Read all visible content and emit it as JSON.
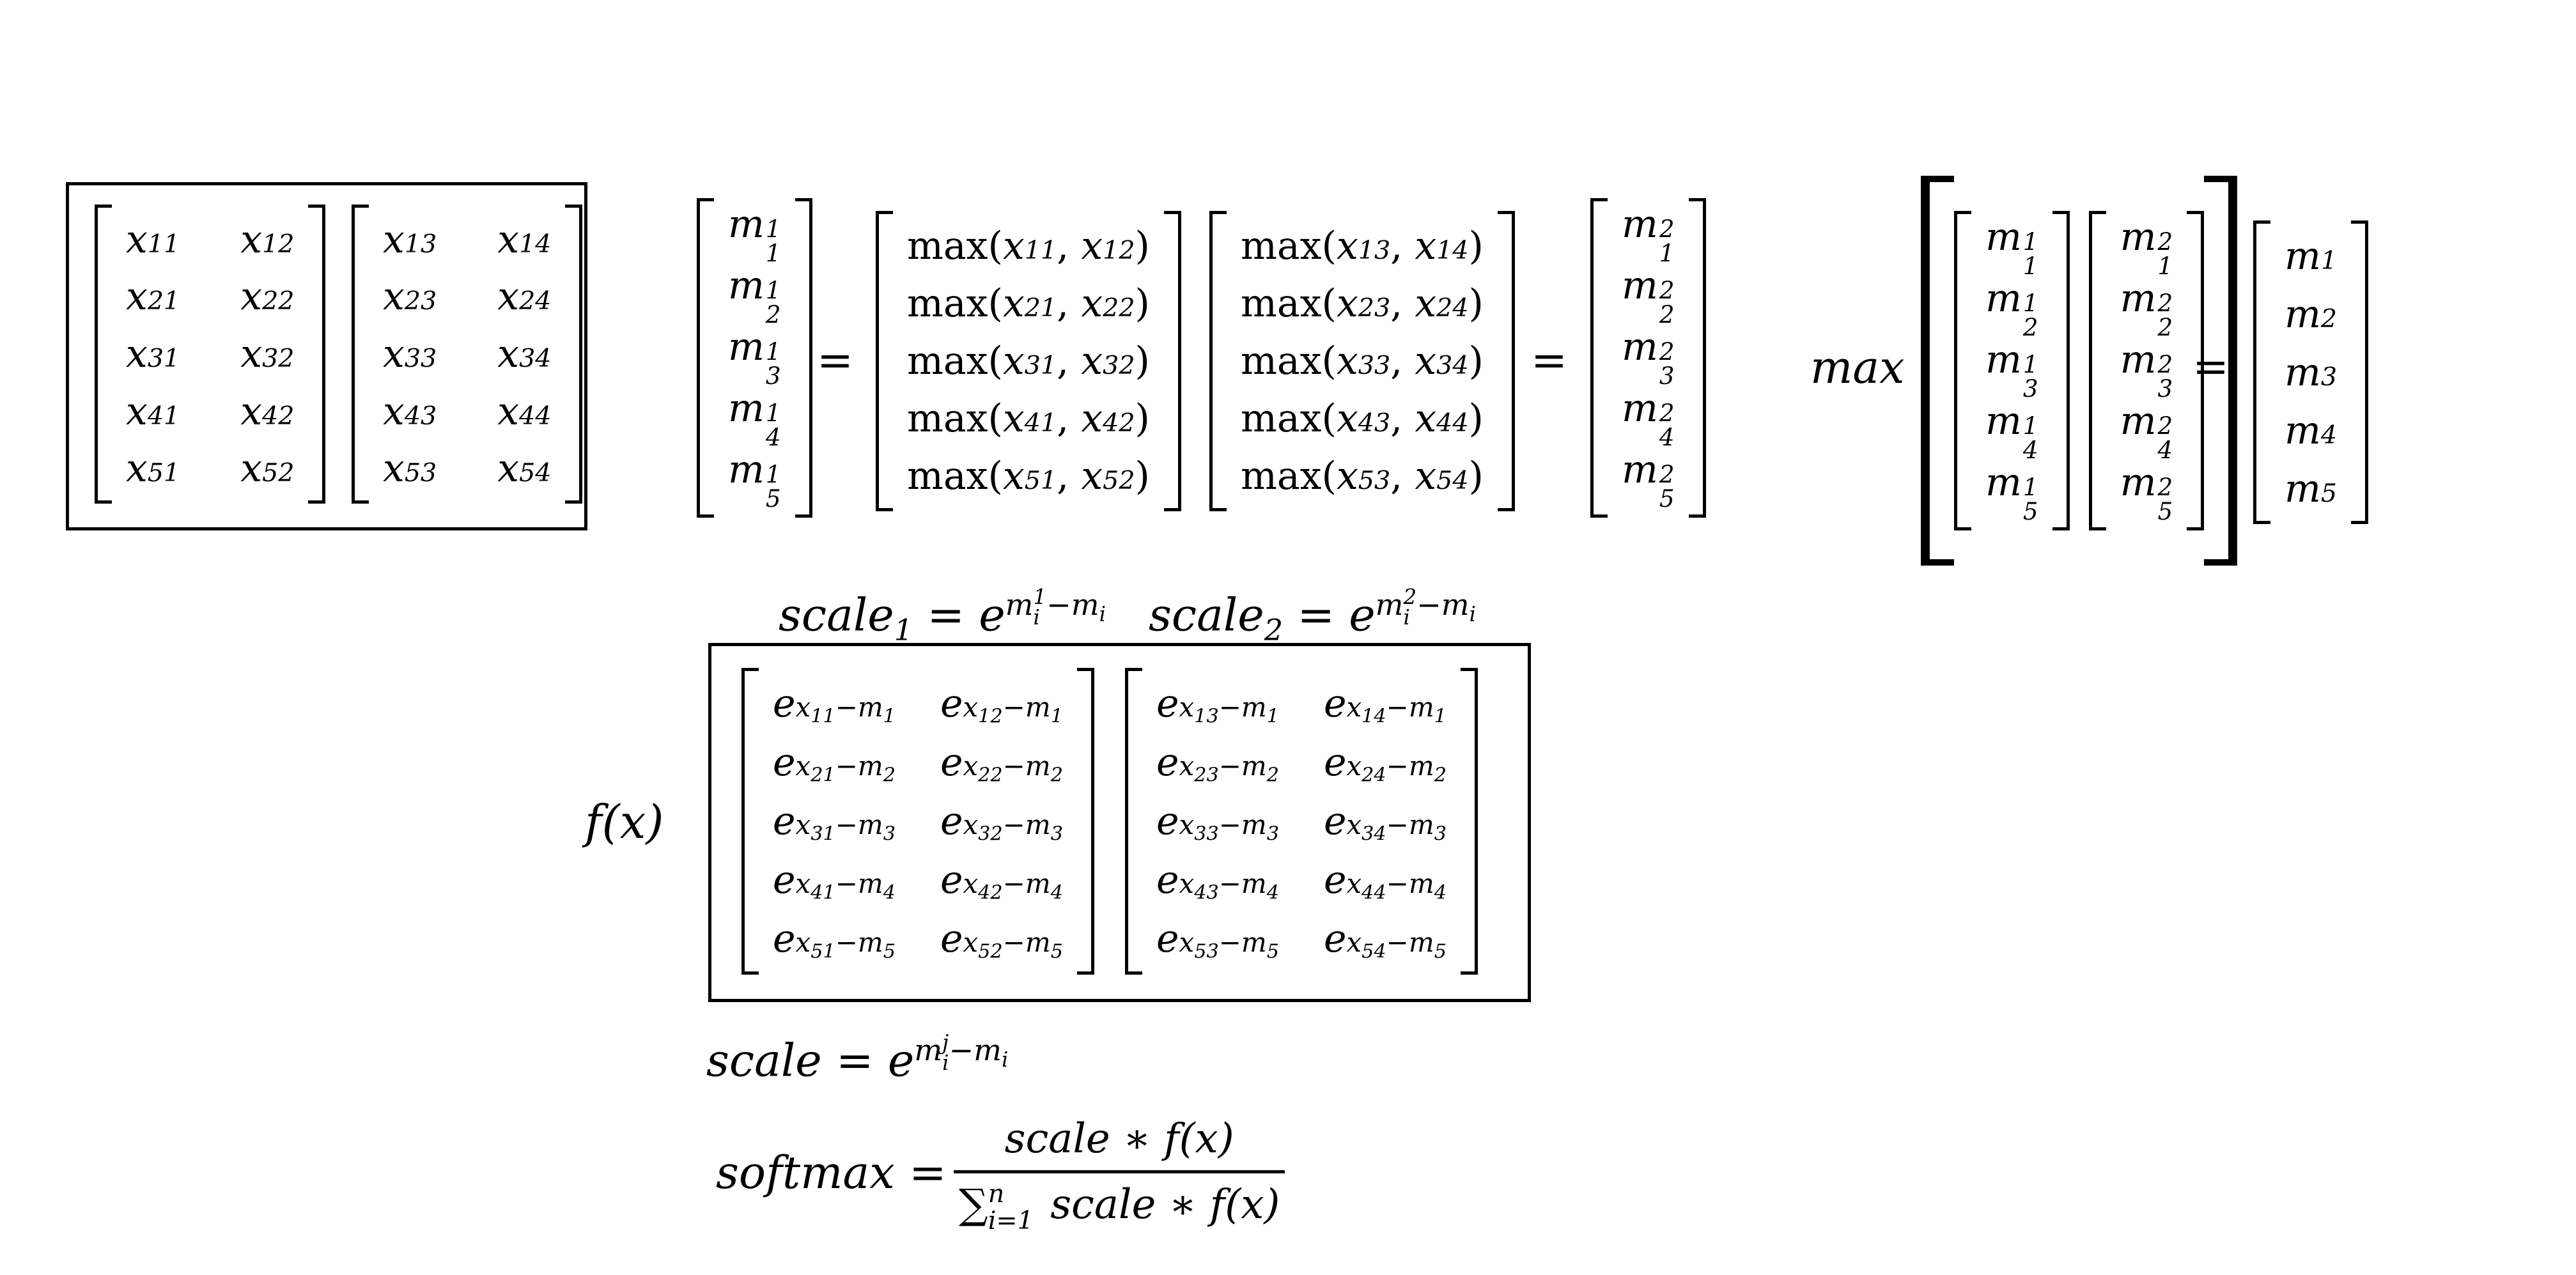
{
  "x_left": {
    "rows": [
      [
        "x",
        "11",
        "x",
        "12"
      ],
      [
        "x",
        "21",
        "x",
        "22"
      ],
      [
        "x",
        "31",
        "x",
        "32"
      ],
      [
        "x",
        "41",
        "x",
        "42"
      ],
      [
        "x",
        "51",
        "x",
        "52"
      ]
    ]
  },
  "x_right": {
    "rows": [
      [
        "x",
        "13",
        "x",
        "14"
      ],
      [
        "x",
        "23",
        "x",
        "24"
      ],
      [
        "x",
        "33",
        "x",
        "34"
      ],
      [
        "x",
        "43",
        "x",
        "44"
      ],
      [
        "x",
        "53",
        "x",
        "54"
      ]
    ]
  },
  "m1_col": {
    "entries": [
      [
        "m",
        "1",
        "1"
      ],
      [
        "m",
        "2",
        "1"
      ],
      [
        "m",
        "3",
        "1"
      ],
      [
        "m",
        "4",
        "1"
      ],
      [
        "m",
        "5",
        "1"
      ]
    ]
  },
  "max_left": {
    "entries": [
      {
        "fn": "max",
        "open": "(",
        "a": "x",
        "as": "11",
        "sep": ", ",
        "b": "x",
        "bs": "12",
        "close": ")"
      },
      {
        "fn": "max",
        "open": "(",
        "a": "x",
        "as": "21",
        "sep": ", ",
        "b": "x",
        "bs": "22",
        "close": ")"
      },
      {
        "fn": "max",
        "open": "(",
        "a": "x",
        "as": "31",
        "sep": ", ",
        "b": "x",
        "bs": "32",
        "close": ")"
      },
      {
        "fn": "max",
        "open": "(",
        "a": "x",
        "as": "41",
        "sep": ", ",
        "b": "x",
        "bs": "42",
        "close": ")"
      },
      {
        "fn": "max",
        "open": "(",
        "a": "x",
        "as": "51",
        "sep": ", ",
        "b": "x",
        "bs": "52",
        "close": ")"
      }
    ]
  },
  "max_right": {
    "entries": [
      {
        "fn": "max",
        "open": "(",
        "a": "x",
        "as": "13",
        "sep": ", ",
        "b": "x",
        "bs": "14",
        "close": ")"
      },
      {
        "fn": "max",
        "open": "(",
        "a": "x",
        "as": "23",
        "sep": ", ",
        "b": "x",
        "bs": "24",
        "close": ")"
      },
      {
        "fn": "max",
        "open": "(",
        "a": "x",
        "as": "33",
        "sep": ", ",
        "b": "x",
        "bs": "34",
        "close": ")"
      },
      {
        "fn": "max",
        "open": "(",
        "a": "x",
        "as": "43",
        "sep": ", ",
        "b": "x",
        "bs": "44",
        "close": ")"
      },
      {
        "fn": "max",
        "open": "(",
        "a": "x",
        "as": "53",
        "sep": ", ",
        "b": "x",
        "bs": "54",
        "close": ")"
      }
    ]
  },
  "m2_col": {
    "entries": [
      [
        "m",
        "1",
        "2"
      ],
      [
        "m",
        "2",
        "2"
      ],
      [
        "m",
        "3",
        "2"
      ],
      [
        "m",
        "4",
        "2"
      ],
      [
        "m",
        "5",
        "2"
      ]
    ]
  },
  "equals": "=",
  "max_label": "max",
  "m_final": {
    "entries": [
      [
        "m",
        "1"
      ],
      [
        "m",
        "2"
      ],
      [
        "m",
        "3"
      ],
      [
        "m",
        "4"
      ],
      [
        "m",
        "5"
      ]
    ]
  },
  "scale1": {
    "name": "scale",
    "sub": "1",
    "eq": " = ",
    "base": "e",
    "sup": "m",
    "supsup": "1",
    "supsub": "i",
    "minus": "−",
    "mi": "m",
    "misub": "i"
  },
  "scale2": {
    "name": "scale",
    "sub": "2",
    "eq": " = ",
    "base": "e",
    "sup": "m",
    "supsup": "2",
    "supsub": "i",
    "minus": "−",
    "mi": "m",
    "misub": "i"
  },
  "fx_label": "f(x)",
  "exp_left": {
    "rows": [
      [
        [
          "x",
          "11",
          "m",
          "1"
        ],
        [
          "x",
          "12",
          "m",
          "1"
        ]
      ],
      [
        [
          "x",
          "21",
          "m",
          "2"
        ],
        [
          "x",
          "22",
          "m",
          "2"
        ]
      ],
      [
        [
          "x",
          "31",
          "m",
          "3"
        ],
        [
          "x",
          "32",
          "m",
          "3"
        ]
      ],
      [
        [
          "x",
          "41",
          "m",
          "4"
        ],
        [
          "x",
          "42",
          "m",
          "4"
        ]
      ],
      [
        [
          "x",
          "51",
          "m",
          "5"
        ],
        [
          "x",
          "52",
          "m",
          "5"
        ]
      ]
    ]
  },
  "exp_right": {
    "rows": [
      [
        [
          "x",
          "13",
          "m",
          "1"
        ],
        [
          "x",
          "14",
          "m",
          "1"
        ]
      ],
      [
        [
          "x",
          "23",
          "m",
          "2"
        ],
        [
          "x",
          "24",
          "m",
          "2"
        ]
      ],
      [
        [
          "x",
          "33",
          "m",
          "3"
        ],
        [
          "x",
          "34",
          "m",
          "3"
        ]
      ],
      [
        [
          "x",
          "43",
          "m",
          "4"
        ],
        [
          "x",
          "44",
          "m",
          "4"
        ]
      ],
      [
        [
          "x",
          "53",
          "m",
          "5"
        ],
        [
          "x",
          "54",
          "m",
          "5"
        ]
      ]
    ]
  },
  "exp_base": "e",
  "minus": "−",
  "scale_general": {
    "name": "scale",
    "eq": " = ",
    "base": "e",
    "sup": "m",
    "supsup": "j",
    "supsub": "i",
    "minus": "−",
    "mi": "m",
    "misub": "i"
  },
  "softmax": {
    "name": "softmax",
    "eq": " = ",
    "numerator": "scale ∗ f(x)",
    "sum": "∑",
    "sum_top": "n",
    "sum_bottom": "i=1",
    "denominator_rest": " scale ∗ f(x)"
  }
}
